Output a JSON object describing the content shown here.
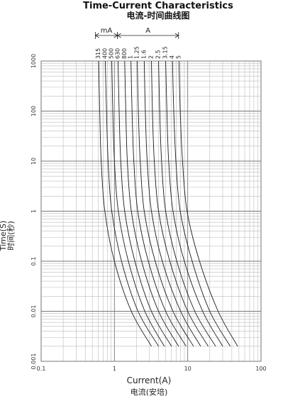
{
  "chart_data": {
    "type": "line",
    "title": "Time-Current Characteristics",
    "subtitle": "电流-时间曲线图",
    "xlabel": "Current(A)",
    "xlabel_cn": "电流(安培)",
    "ylabel": "Time(S)",
    "ylabel_cn": "时间(秒)",
    "xscale": "log",
    "yscale": "log",
    "xlim": [
      0.1,
      100
    ],
    "ylim": [
      0.001,
      1000
    ],
    "x_ticks": [
      "0.1",
      "1",
      "10",
      "100"
    ],
    "y_ticks": [
      "0.001",
      "0.01",
      "0.1",
      "1",
      "10",
      "100",
      "1000"
    ],
    "grid": true,
    "group_labels": [
      {
        "label": "mA",
        "from": 0.55,
        "to": 1.1
      },
      {
        "label": "A",
        "from": 1.1,
        "to": 7.5
      }
    ],
    "series": [
      {
        "name": "315",
        "points": [
          [
            0.61,
            1000
          ],
          [
            0.63,
            100
          ],
          [
            0.66,
            10
          ],
          [
            0.74,
            1
          ],
          [
            1.0,
            0.1
          ],
          [
            1.7,
            0.01
          ],
          [
            3.2,
            0.002
          ]
        ]
      },
      {
        "name": "400",
        "points": [
          [
            0.75,
            1000
          ],
          [
            0.78,
            100
          ],
          [
            0.82,
            10
          ],
          [
            0.92,
            1
          ],
          [
            1.25,
            0.1
          ],
          [
            2.1,
            0.01
          ],
          [
            4.0,
            0.002
          ]
        ]
      },
      {
        "name": "500",
        "points": [
          [
            0.92,
            1000
          ],
          [
            0.95,
            100
          ],
          [
            1.0,
            10
          ],
          [
            1.13,
            1
          ],
          [
            1.55,
            0.1
          ],
          [
            2.6,
            0.01
          ],
          [
            4.8,
            0.002
          ]
        ]
      },
      {
        "name": "630",
        "points": [
          [
            1.12,
            1000
          ],
          [
            1.16,
            100
          ],
          [
            1.22,
            10
          ],
          [
            1.38,
            1
          ],
          [
            1.9,
            0.1
          ],
          [
            3.2,
            0.01
          ],
          [
            6.0,
            0.002
          ]
        ]
      },
      {
        "name": "800",
        "points": [
          [
            1.38,
            1000
          ],
          [
            1.43,
            100
          ],
          [
            1.5,
            10
          ],
          [
            1.7,
            1
          ],
          [
            2.35,
            0.1
          ],
          [
            4.0,
            0.01
          ],
          [
            7.5,
            0.002
          ]
        ]
      },
      {
        "name": "1",
        "points": [
          [
            1.68,
            1000
          ],
          [
            1.74,
            100
          ],
          [
            1.84,
            10
          ],
          [
            2.08,
            1
          ],
          [
            2.9,
            0.1
          ],
          [
            5.0,
            0.01
          ],
          [
            9.5,
            0.002
          ]
        ]
      },
      {
        "name": "1.25",
        "points": [
          [
            2.05,
            1000
          ],
          [
            2.12,
            100
          ],
          [
            2.25,
            10
          ],
          [
            2.55,
            1
          ],
          [
            3.6,
            0.1
          ],
          [
            6.3,
            0.01
          ],
          [
            12,
            0.002
          ]
        ]
      },
      {
        "name": "1.6",
        "points": [
          [
            2.55,
            1000
          ],
          [
            2.64,
            100
          ],
          [
            2.8,
            10
          ],
          [
            3.2,
            1
          ],
          [
            4.5,
            0.1
          ],
          [
            8.0,
            0.01
          ],
          [
            15,
            0.002
          ]
        ]
      },
      {
        "name": "2",
        "points": [
          [
            3.2,
            1000
          ],
          [
            3.3,
            100
          ],
          [
            3.5,
            10
          ],
          [
            4.0,
            1
          ],
          [
            5.7,
            0.1
          ],
          [
            10,
            0.01
          ],
          [
            19,
            0.002
          ]
        ]
      },
      {
        "name": "2.5",
        "points": [
          [
            4.0,
            1000
          ],
          [
            4.15,
            100
          ],
          [
            4.4,
            10
          ],
          [
            5.0,
            1
          ],
          [
            7.1,
            0.1
          ],
          [
            12.5,
            0.01
          ],
          [
            24,
            0.002
          ]
        ]
      },
      {
        "name": "3.15",
        "points": [
          [
            5.0,
            1000
          ],
          [
            5.2,
            100
          ],
          [
            5.5,
            10
          ],
          [
            6.3,
            1
          ],
          [
            9.0,
            0.1
          ],
          [
            16,
            0.01
          ],
          [
            30,
            0.002
          ]
        ]
      },
      {
        "name": "4",
        "points": [
          [
            6.2,
            1000
          ],
          [
            6.45,
            100
          ],
          [
            6.9,
            10
          ],
          [
            7.9,
            1
          ],
          [
            11.5,
            0.1
          ],
          [
            20,
            0.01
          ],
          [
            38,
            0.002
          ]
        ]
      },
      {
        "name": "5",
        "points": [
          [
            7.6,
            1000
          ],
          [
            7.9,
            100
          ],
          [
            8.5,
            10
          ],
          [
            9.8,
            1
          ],
          [
            14.5,
            0.1
          ],
          [
            26,
            0.01
          ],
          [
            48,
            0.002
          ]
        ]
      }
    ]
  }
}
